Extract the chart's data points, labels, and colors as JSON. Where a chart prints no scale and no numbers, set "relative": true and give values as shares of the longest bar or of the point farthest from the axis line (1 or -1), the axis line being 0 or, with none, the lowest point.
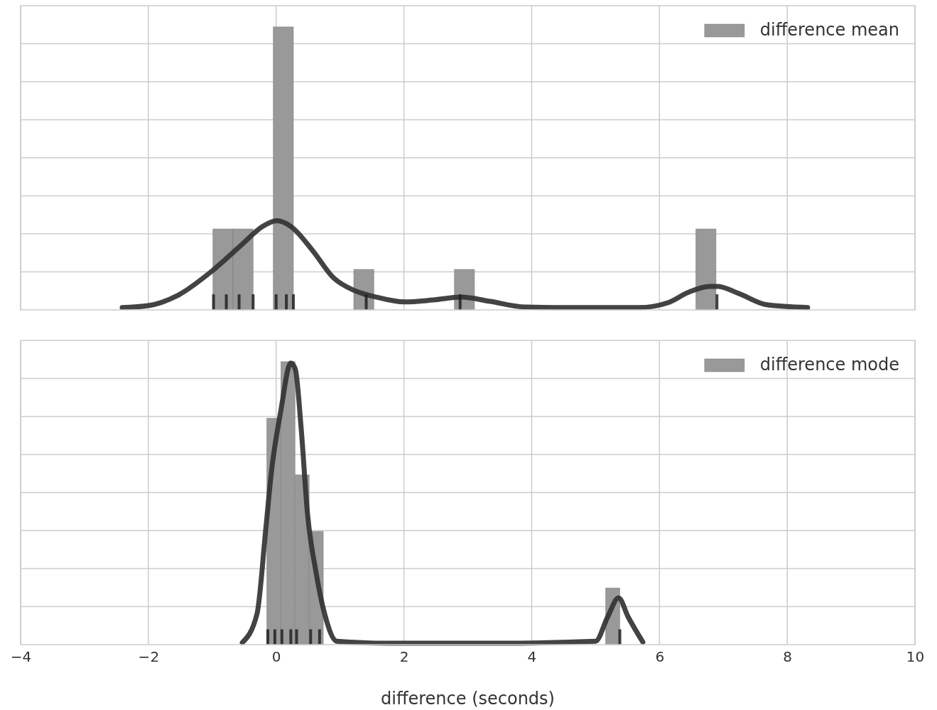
{
  "chart_data": [
    {
      "type": "histogram",
      "relative": true,
      "bins": [
        -0.99,
        -0.675,
        -0.36,
        -0.045,
        0.27,
        0.585,
        0.9,
        1.215,
        1.53,
        1.845,
        2.16,
        2.475,
        2.79,
        3.105,
        3.42,
        3.735,
        4.05,
        4.365,
        4.68,
        4.995,
        5.31,
        5.625,
        5.94,
        6.255,
        6.57,
        6.885
      ],
      "series": [
        {
          "name": "difference mean",
          "color": "#999999",
          "values": [
            0.286,
            0.286,
            0,
            1,
            0,
            0,
            0,
            0.143,
            0,
            0,
            0,
            0,
            0.143,
            0,
            0,
            0,
            0,
            0,
            0,
            0,
            0,
            0,
            0,
            0,
            0.286
          ]
        },
        {
          "type": "line",
          "color": "#333333",
          "x": [
            -2.41,
            -2.0,
            -1.55,
            -0.99,
            -0.54,
            -0.21,
            0.01,
            0.23,
            0.57,
            0.9,
            1.23,
            1.57,
            2.01,
            2.46,
            2.9,
            3.35,
            3.9,
            4.57,
            5.68,
            6.13,
            6.46,
            6.79,
            6.91,
            7.24,
            7.68,
            8.32
          ],
          "values": [
            0.008,
            0.015,
            0.05,
            0.14,
            0.23,
            0.295,
            0.315,
            0.295,
            0.21,
            0.113,
            0.068,
            0.045,
            0.028,
            0.035,
            0.045,
            0.03,
            0.01,
            0.008,
            0.008,
            0.025,
            0.063,
            0.083,
            0.083,
            0.058,
            0.018,
            0.008
          ]
        },
        {
          "type": "bar",
          "color": "#222222",
          "x": [
            -0.98,
            -0.78,
            -0.58,
            -0.36,
            0.0,
            0.16,
            0.27,
            1.41,
            2.88,
            6.9
          ],
          "values": [
            0.055,
            0.055,
            0.055,
            0.055,
            0.055,
            0.055,
            0.055,
            0.055,
            0.055,
            0.055
          ]
        }
      ],
      "xlim": [
        -4,
        10
      ],
      "xticks": [
        -4,
        -2,
        0,
        2,
        4,
        6,
        8,
        10
      ],
      "grid": true,
      "legend": "top right",
      "tick_labels": false
    },
    {
      "type": "histogram",
      "relative": true,
      "bins": [
        -0.146,
        0.075,
        0.296,
        0.517,
        0.738,
        0.959,
        1.18,
        1.401,
        1.622,
        1.843,
        2.064,
        2.285,
        2.506,
        2.727,
        2.948,
        3.169,
        3.39,
        3.611,
        3.832,
        4.053,
        4.274,
        4.495,
        4.716,
        4.937,
        5.158,
        5.379
      ],
      "series": [
        {
          "name": "difference mode",
          "color": "#999999",
          "values": [
            0.8,
            1,
            0.6,
            0.4,
            0,
            0,
            0,
            0,
            0,
            0,
            0,
            0,
            0,
            0,
            0,
            0,
            0,
            0,
            0,
            0,
            0,
            0,
            0,
            0,
            0.2
          ]
        },
        {
          "type": "line",
          "color": "#333333",
          "x": [
            -0.53,
            -0.3,
            -0.16,
            -0.07,
            0.07,
            0.23,
            0.3,
            0.39,
            0.49,
            0.62,
            0.76,
            0.95,
            1.78,
            3.46,
            5.0,
            5.19,
            5.36,
            5.51,
            5.74
          ],
          "values": [
            0.007,
            0.108,
            0.414,
            0.618,
            0.822,
            0.995,
            0.974,
            0.77,
            0.465,
            0.261,
            0.108,
            0.012,
            0.005,
            0.005,
            0.012,
            0.098,
            0.165,
            0.098,
            0.009
          ]
        },
        {
          "type": "bar",
          "color": "#222222",
          "x": [
            -0.13,
            -0.02,
            0.09,
            0.23,
            0.32,
            0.54,
            0.68,
            5.38
          ],
          "values": [
            0.054,
            0.054,
            0.054,
            0.054,
            0.054,
            0.054,
            0.054,
            0.054
          ]
        }
      ],
      "xlim": [
        -4,
        10
      ],
      "xticks": [
        {
          "value": -4,
          "label": "−4"
        },
        {
          "value": -2,
          "label": "−2"
        },
        0,
        2,
        4,
        6,
        8,
        10
      ],
      "xlabel": "difference (seconds)",
      "grid": true,
      "legend": "top right",
      "tick_labels": "x"
    }
  ]
}
